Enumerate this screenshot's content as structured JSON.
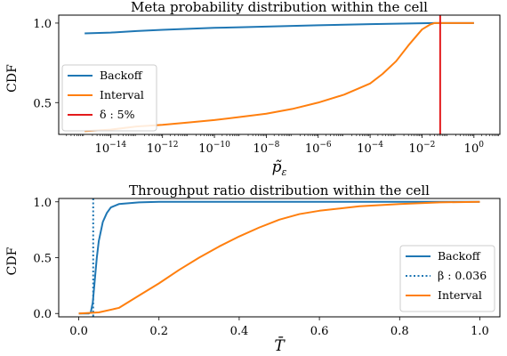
{
  "colors": {
    "backoff": "#1f77b4",
    "interval": "#ff7f0e",
    "delta": "#e31a1c",
    "axis": "#000000"
  },
  "chart_data": [
    {
      "type": "line",
      "title": "Meta probability distribution within the cell",
      "xlabel": "p̃",
      "xlabel_sub": "ε",
      "ylabel": "CDF",
      "xscale": "log",
      "xlim": [
        1e-16,
        10
      ],
      "ylim": [
        0.3,
        1.05
      ],
      "xticks": [
        1e-14,
        1e-12,
        1e-10,
        1e-08,
        1e-06,
        0.0001,
        0.01,
        1
      ],
      "xtick_labels": [
        {
          "base": "10",
          "exp": "−14"
        },
        {
          "base": "10",
          "exp": "−12"
        },
        {
          "base": "10",
          "exp": "−10"
        },
        {
          "base": "10",
          "exp": "−8"
        },
        {
          "base": "10",
          "exp": "−6"
        },
        {
          "base": "10",
          "exp": "−4"
        },
        {
          "base": "10",
          "exp": "−2"
        },
        {
          "base": "10",
          "exp": "0"
        }
      ],
      "yticks": [
        0.5,
        1.0
      ],
      "ytick_labels": [
        "0.5",
        "1.0"
      ],
      "legend_position": "lower-left",
      "series": [
        {
          "name": "Backoff",
          "color_key": "backoff",
          "dash": "solid",
          "x": [
            1e-15,
            1e-14,
            1e-13,
            1e-12,
            1e-11,
            1e-10,
            1e-09,
            1e-08,
            1e-07,
            1e-06,
            1e-05,
            0.0001,
            0.001,
            0.01,
            0.03,
            1
          ],
          "y": [
            0.935,
            0.94,
            0.95,
            0.958,
            0.964,
            0.97,
            0.974,
            0.978,
            0.982,
            0.986,
            0.99,
            0.993,
            0.996,
            0.999,
            1.0,
            1.0
          ]
        },
        {
          "name": "Interval",
          "color_key": "interval",
          "dash": "solid",
          "x": [
            1e-15,
            1e-14,
            1e-13,
            1e-12,
            1e-11,
            1e-10,
            1e-09,
            1e-08,
            1e-07,
            1e-06,
            1e-05,
            0.0001,
            0.0003,
            0.001,
            0.003,
            0.01,
            0.02,
            0.03,
            0.05,
            1
          ],
          "y": [
            0.32,
            0.33,
            0.35,
            0.36,
            0.375,
            0.39,
            0.41,
            0.43,
            0.46,
            0.5,
            0.55,
            0.62,
            0.68,
            0.76,
            0.86,
            0.96,
            0.99,
            1.0,
            1.0,
            1.0
          ]
        },
        {
          "name": "δ : 5%",
          "color_key": "delta",
          "dash": "solid",
          "vline": 0.05
        }
      ]
    },
    {
      "type": "line",
      "title": "Throughput ratio distribution within the cell",
      "xlabel": "T̄",
      "ylabel": "CDF",
      "xscale": "linear",
      "xlim": [
        -0.05,
        1.05
      ],
      "ylim": [
        -0.03,
        1.03
      ],
      "xticks": [
        0.0,
        0.2,
        0.4,
        0.6,
        0.8,
        1.0
      ],
      "xtick_labels": [
        "0.0",
        "0.2",
        "0.4",
        "0.6",
        "0.8",
        "1.0"
      ],
      "yticks": [
        0.0,
        0.5,
        1.0
      ],
      "ytick_labels": [
        "0.0",
        "0.5",
        "1.0"
      ],
      "legend_position": "lower-right",
      "series": [
        {
          "name": "Backoff",
          "color_key": "backoff",
          "dash": "solid",
          "x": [
            0.0,
            0.025,
            0.03,
            0.035,
            0.04,
            0.045,
            0.05,
            0.06,
            0.07,
            0.08,
            0.1,
            0.15,
            0.2,
            1.0
          ],
          "y": [
            0.0,
            0.0,
            0.01,
            0.1,
            0.3,
            0.5,
            0.65,
            0.82,
            0.9,
            0.95,
            0.98,
            0.995,
            1.0,
            1.0
          ]
        },
        {
          "name": "β : 0.036",
          "color_key": "backoff",
          "dash": "dotted",
          "vline": 0.036
        },
        {
          "name": "Interval",
          "color_key": "interval",
          "dash": "solid",
          "x": [
            0.0,
            0.05,
            0.1,
            0.15,
            0.2,
            0.25,
            0.3,
            0.35,
            0.4,
            0.45,
            0.5,
            0.55,
            0.6,
            0.7,
            0.8,
            0.9,
            1.0
          ],
          "y": [
            0.0,
            0.01,
            0.05,
            0.16,
            0.27,
            0.39,
            0.5,
            0.6,
            0.69,
            0.77,
            0.84,
            0.89,
            0.92,
            0.96,
            0.98,
            0.995,
            1.0
          ]
        }
      ]
    }
  ]
}
